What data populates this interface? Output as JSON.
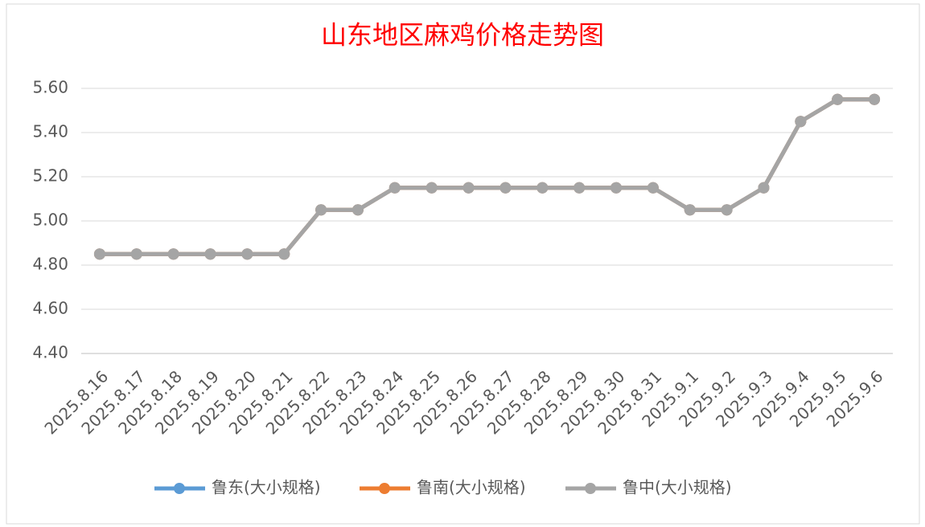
{
  "chart_data": {
    "type": "line",
    "title": "山东地区麻鸡价格走势图",
    "title_color": "#ff0000",
    "categories": [
      "2025.8.16",
      "2025.8.17",
      "2025.8.18",
      "2025.8.19",
      "2025.8.20",
      "2025.8.21",
      "2025.8.22",
      "2025.8.23",
      "2025.8.24",
      "2025.8.25",
      "2025.8.26",
      "2025.8.27",
      "2025.8.28",
      "2025.8.29",
      "2025.8.30",
      "2025.8.31",
      "2025.9.1",
      "2025.9.2",
      "2025.9.3",
      "2025.9.4",
      "2025.9.5",
      "2025.9.6"
    ],
    "series": [
      {
        "name": "鲁东(大小规格)",
        "color": "#5b9bd5",
        "values": [
          4.85,
          4.85,
          4.85,
          4.85,
          4.85,
          4.85,
          5.05,
          5.05,
          5.15,
          5.15,
          5.15,
          5.15,
          5.15,
          5.15,
          5.15,
          5.15,
          5.05,
          5.05,
          5.15,
          5.45,
          5.55,
          5.55
        ]
      },
      {
        "name": "鲁南(大小规格)",
        "color": "#ed7d31",
        "values": [
          4.85,
          4.85,
          4.85,
          4.85,
          4.85,
          4.85,
          5.05,
          5.05,
          5.15,
          5.15,
          5.15,
          5.15,
          5.15,
          5.15,
          5.15,
          5.15,
          5.05,
          5.05,
          5.15,
          5.45,
          5.55,
          5.55
        ]
      },
      {
        "name": "鲁中(大小规格)",
        "color": "#a5a5a5",
        "values": [
          4.85,
          4.85,
          4.85,
          4.85,
          4.85,
          4.85,
          5.05,
          5.05,
          5.15,
          5.15,
          5.15,
          5.15,
          5.15,
          5.15,
          5.15,
          5.15,
          5.05,
          5.05,
          5.15,
          5.45,
          5.55,
          5.55
        ]
      }
    ],
    "ylim": [
      4.4,
      5.6
    ],
    "yticks": [
      {
        "value": 4.4,
        "label": "4.40"
      },
      {
        "value": 4.6,
        "label": "4.60"
      },
      {
        "value": 4.8,
        "label": "4.80"
      },
      {
        "value": 5,
        "label": "5.00"
      },
      {
        "value": 5.2,
        "label": "5.20"
      },
      {
        "value": 5.4,
        "label": "5.40"
      },
      {
        "value": 5.6,
        "label": "5.60"
      }
    ],
    "grid": true,
    "legend": "bottom"
  }
}
